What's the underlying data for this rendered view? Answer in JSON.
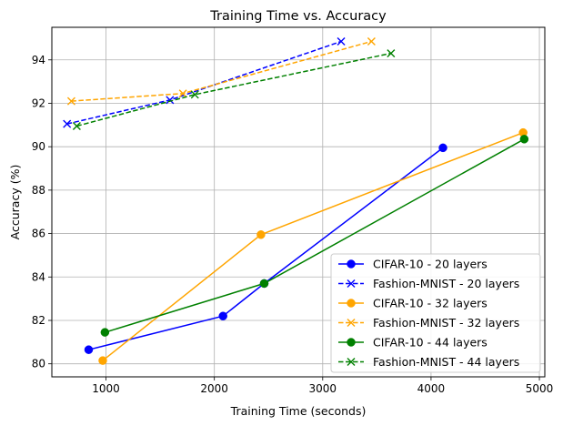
{
  "chart_data": {
    "type": "line",
    "title": "Training Time vs. Accuracy",
    "xlabel": "Training Time (seconds)",
    "ylabel": "Accuracy (%)",
    "xlim": [
      500,
      5050
    ],
    "ylim": [
      79.4,
      95.5
    ],
    "xticks": [
      1000,
      2000,
      3000,
      4000,
      5000
    ],
    "yticks": [
      80,
      82,
      84,
      86,
      88,
      90,
      92,
      94
    ],
    "grid": true,
    "legend_position": "lower-right",
    "series": [
      {
        "name": "CIFAR-10 - 20 layers",
        "color": "#0000ff",
        "linestyle": "solid",
        "marker": "circle",
        "points": [
          [
            840,
            80.65
          ],
          [
            2080,
            82.2
          ],
          [
            2460,
            83.7
          ],
          [
            4110,
            89.95
          ]
        ]
      },
      {
        "name": "Fashion-MNIST - 20 layers",
        "color": "#0000ff",
        "linestyle": "dashed",
        "marker": "x",
        "points": [
          [
            640,
            91.05
          ],
          [
            1590,
            92.15
          ],
          [
            3170,
            94.85
          ]
        ]
      },
      {
        "name": "CIFAR-10 - 32 layers",
        "color": "#ffa500",
        "linestyle": "solid",
        "marker": "circle",
        "points": [
          [
            970,
            80.15
          ],
          [
            2430,
            85.95
          ],
          [
            4850,
            90.65
          ]
        ]
      },
      {
        "name": "Fashion-MNIST - 32 layers",
        "color": "#ffa500",
        "linestyle": "dashed",
        "marker": "x",
        "points": [
          [
            680,
            92.1
          ],
          [
            1710,
            92.45
          ],
          [
            3450,
            94.85
          ]
        ]
      },
      {
        "name": "CIFAR-10 - 44 layers",
        "color": "#008000",
        "linestyle": "solid",
        "marker": "circle",
        "points": [
          [
            990,
            81.45
          ],
          [
            2460,
            83.7
          ],
          [
            4860,
            90.35
          ]
        ]
      },
      {
        "name": "Fashion-MNIST - 44 layers",
        "color": "#008000",
        "linestyle": "dashed",
        "marker": "x",
        "points": [
          [
            730,
            90.95
          ],
          [
            1820,
            92.4
          ],
          [
            3630,
            94.3
          ]
        ]
      }
    ]
  }
}
